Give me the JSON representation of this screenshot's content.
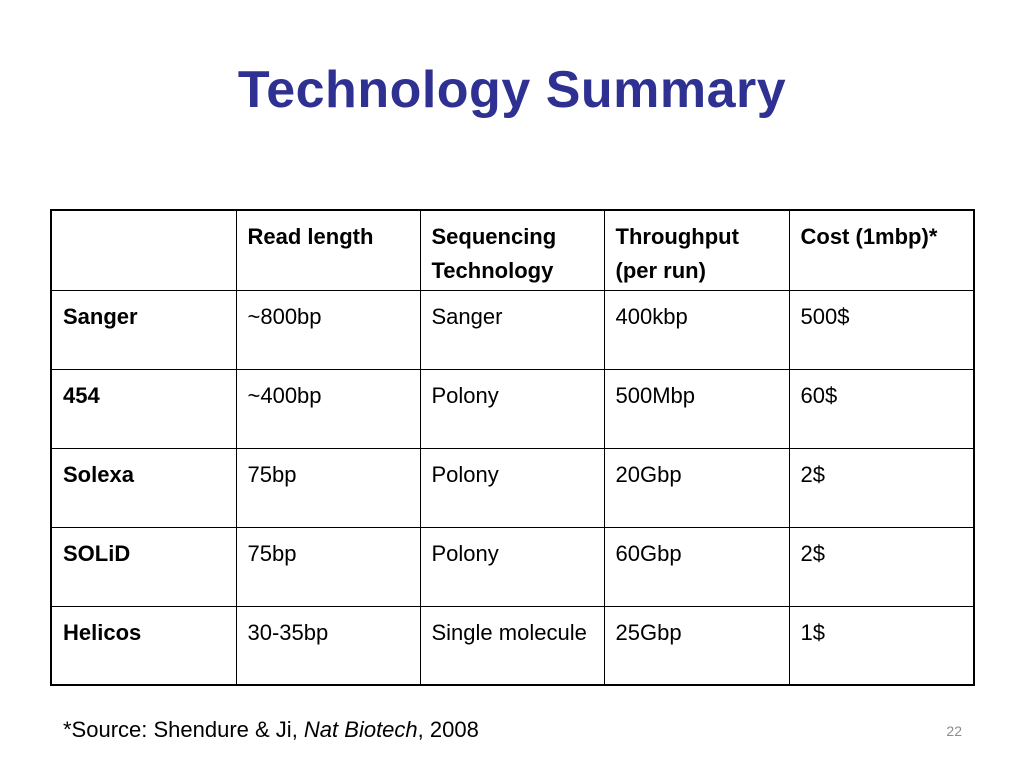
{
  "slide": {
    "title": "Technology Summary",
    "page_number": "22"
  },
  "table": {
    "headers": [
      "",
      "Read length",
      "Sequencing Technology",
      "Throughput (per run)",
      "Cost (1mbp)*"
    ],
    "rows": [
      {
        "name": "Sanger",
        "read_length": "~800bp",
        "technology": "Sanger",
        "throughput": "400kbp",
        "cost": "500$"
      },
      {
        "name": "454",
        "read_length": "~400bp",
        "technology": "Polony",
        "throughput": "500Mbp",
        "cost": "60$"
      },
      {
        "name": "Solexa",
        "read_length": "75bp",
        "technology": "Polony",
        "throughput": "20Gbp",
        "cost": "2$"
      },
      {
        "name": "SOLiD",
        "read_length": "75bp",
        "technology": "Polony",
        "throughput": "60Gbp",
        "cost": "2$"
      },
      {
        "name": "Helicos",
        "read_length": "30-35bp",
        "technology": "Single molecule",
        "throughput": "25Gbp",
        "cost": "1$"
      }
    ]
  },
  "footnote": {
    "prefix": "*Source: Shendure & Ji, ",
    "journal": "Nat Biotech",
    "suffix": ", 2008"
  },
  "colors": {
    "title": "#2f3192",
    "text": "#000000",
    "page_number": "#8c8c8c"
  }
}
